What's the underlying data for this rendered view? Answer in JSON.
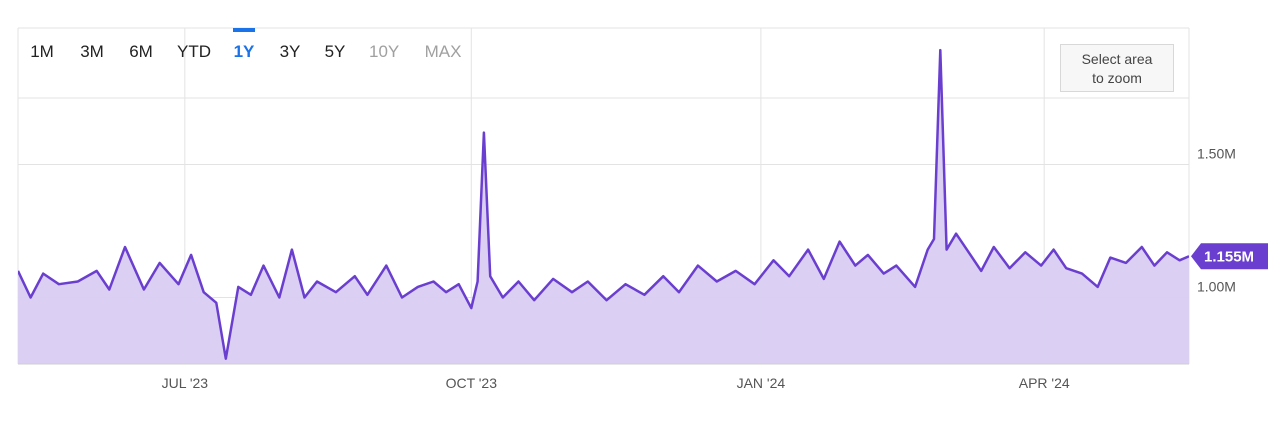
{
  "range_buttons": [
    {
      "label": "1M",
      "state": "normal"
    },
    {
      "label": "3M",
      "state": "normal"
    },
    {
      "label": "6M",
      "state": "normal"
    },
    {
      "label": "YTD",
      "state": "normal"
    },
    {
      "label": "1Y",
      "state": "active"
    },
    {
      "label": "3Y",
      "state": "normal"
    },
    {
      "label": "5Y",
      "state": "normal"
    },
    {
      "label": "10Y",
      "state": "disabled"
    },
    {
      "label": "MAX",
      "state": "disabled"
    }
  ],
  "zoom_button": {
    "line1": "Select area",
    "line2": "to zoom"
  },
  "colors": {
    "line": "#6a3fcf",
    "fill": "#d9cdf2",
    "grid": "#e3e3e3",
    "badge": "#6a3fcf",
    "active": "#1a73e8"
  },
  "chart_data": {
    "type": "area",
    "title": "",
    "xlabel": "",
    "ylabel": "",
    "x_range": [
      "2023-05-11",
      "2024-05-17"
    ],
    "ylim": [
      750000,
      1750000
    ],
    "y_ticks": [
      {
        "value": 1000000,
        "label": "1.00M"
      },
      {
        "value": 1500000,
        "label": "1.50M"
      }
    ],
    "x_ticks": [
      {
        "date": "2023-07-03",
        "label": "JUL '23"
      },
      {
        "date": "2023-10-02",
        "label": "OCT '23"
      },
      {
        "date": "2024-01-02",
        "label": "JAN '24"
      },
      {
        "date": "2024-04-01",
        "label": "APR '24"
      }
    ],
    "grid": true,
    "last_value_label": "1.155M",
    "series": [
      {
        "values": [
          [
            "2023-05-11",
            1100000
          ],
          [
            "2023-05-15",
            1000000
          ],
          [
            "2023-05-19",
            1090000
          ],
          [
            "2023-05-24",
            1050000
          ],
          [
            "2023-05-30",
            1060000
          ],
          [
            "2023-06-05",
            1100000
          ],
          [
            "2023-06-09",
            1030000
          ],
          [
            "2023-06-14",
            1190000
          ],
          [
            "2023-06-20",
            1030000
          ],
          [
            "2023-06-25",
            1130000
          ],
          [
            "2023-07-01",
            1050000
          ],
          [
            "2023-07-05",
            1160000
          ],
          [
            "2023-07-09",
            1020000
          ],
          [
            "2023-07-13",
            980000
          ],
          [
            "2023-07-16",
            770000
          ],
          [
            "2023-07-20",
            1040000
          ],
          [
            "2023-07-24",
            1010000
          ],
          [
            "2023-07-28",
            1120000
          ],
          [
            "2023-08-02",
            1000000
          ],
          [
            "2023-08-06",
            1180000
          ],
          [
            "2023-08-10",
            1000000
          ],
          [
            "2023-08-14",
            1060000
          ],
          [
            "2023-08-20",
            1020000
          ],
          [
            "2023-08-26",
            1080000
          ],
          [
            "2023-08-30",
            1010000
          ],
          [
            "2023-09-05",
            1120000
          ],
          [
            "2023-09-10",
            1000000
          ],
          [
            "2023-09-15",
            1040000
          ],
          [
            "2023-09-20",
            1060000
          ],
          [
            "2023-09-24",
            1020000
          ],
          [
            "2023-09-28",
            1050000
          ],
          [
            "2023-10-02",
            960000
          ],
          [
            "2023-10-04",
            1060000
          ],
          [
            "2023-10-06",
            1620000
          ],
          [
            "2023-10-08",
            1080000
          ],
          [
            "2023-10-12",
            1000000
          ],
          [
            "2023-10-17",
            1060000
          ],
          [
            "2023-10-22",
            990000
          ],
          [
            "2023-10-28",
            1070000
          ],
          [
            "2023-11-03",
            1020000
          ],
          [
            "2023-11-08",
            1060000
          ],
          [
            "2023-11-14",
            990000
          ],
          [
            "2023-11-20",
            1050000
          ],
          [
            "2023-11-26",
            1010000
          ],
          [
            "2023-12-02",
            1080000
          ],
          [
            "2023-12-07",
            1020000
          ],
          [
            "2023-12-13",
            1120000
          ],
          [
            "2023-12-19",
            1060000
          ],
          [
            "2023-12-25",
            1100000
          ],
          [
            "2023-12-31",
            1050000
          ],
          [
            "2024-01-06",
            1140000
          ],
          [
            "2024-01-11",
            1080000
          ],
          [
            "2024-01-17",
            1180000
          ],
          [
            "2024-01-22",
            1070000
          ],
          [
            "2024-01-27",
            1210000
          ],
          [
            "2024-02-01",
            1120000
          ],
          [
            "2024-02-05",
            1160000
          ],
          [
            "2024-02-10",
            1090000
          ],
          [
            "2024-02-14",
            1120000
          ],
          [
            "2024-02-20",
            1040000
          ],
          [
            "2024-02-24",
            1180000
          ],
          [
            "2024-02-26",
            1220000
          ],
          [
            "2024-02-28",
            1930000
          ],
          [
            "2024-03-01",
            1180000
          ],
          [
            "2024-03-04",
            1240000
          ],
          [
            "2024-03-08",
            1170000
          ],
          [
            "2024-03-12",
            1100000
          ],
          [
            "2024-03-16",
            1190000
          ],
          [
            "2024-03-21",
            1110000
          ],
          [
            "2024-03-26",
            1170000
          ],
          [
            "2024-03-31",
            1120000
          ],
          [
            "2024-04-04",
            1180000
          ],
          [
            "2024-04-08",
            1110000
          ],
          [
            "2024-04-13",
            1090000
          ],
          [
            "2024-04-18",
            1040000
          ],
          [
            "2024-04-22",
            1150000
          ],
          [
            "2024-04-27",
            1130000
          ],
          [
            "2024-05-02",
            1190000
          ],
          [
            "2024-05-06",
            1120000
          ],
          [
            "2024-05-10",
            1170000
          ],
          [
            "2024-05-14",
            1140000
          ],
          [
            "2024-05-17",
            1155000
          ]
        ]
      }
    ]
  }
}
